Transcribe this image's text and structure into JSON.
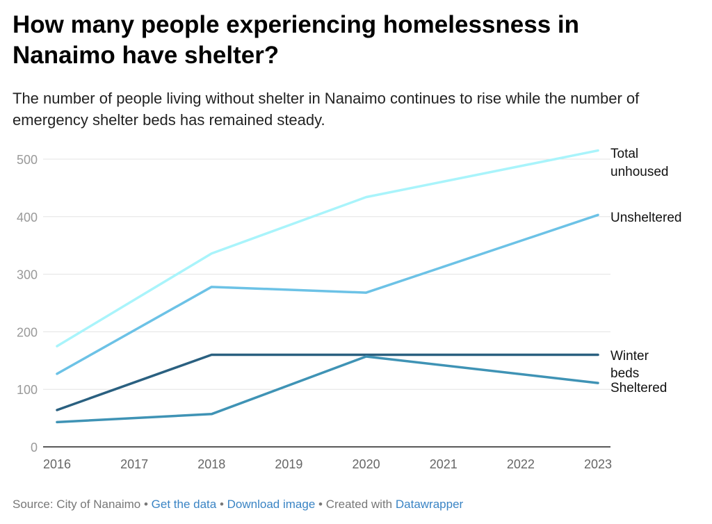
{
  "title": "How many people experiencing homelessness in Nanaimo have shelter?",
  "subtitle": "The number of people living without shelter in Nanaimo continues to rise while the number of emergency shelter beds has remained steady.",
  "footer": {
    "source": "Source: City of Nanaimo",
    "sep": " • ",
    "get_data": "Get the data",
    "download": "Download image",
    "created": "Created with ",
    "datawrapper": "Datawrapper"
  },
  "chart_data": {
    "type": "line",
    "x_ticks": [
      "2016",
      "2017",
      "2018",
      "2019",
      "2020",
      "2021",
      "2022",
      "2023"
    ],
    "xlim": [
      2016,
      2023
    ],
    "y_ticks": [
      0,
      100,
      200,
      300,
      400,
      500
    ],
    "ylim": [
      0,
      500
    ],
    "grid": true,
    "series": [
      {
        "name": "Total unhoused",
        "label_lines": [
          "Total",
          "unhoused"
        ],
        "color": "#a9f4fb",
        "x": [
          2016,
          2018,
          2020,
          2023
        ],
        "values": [
          175,
          336,
          434,
          515
        ]
      },
      {
        "name": "Unsheltered",
        "label_lines": [
          "Unsheltered"
        ],
        "color": "#6cc2e6",
        "x": [
          2016,
          2018,
          2020,
          2023
        ],
        "values": [
          127,
          278,
          268,
          403
        ]
      },
      {
        "name": "Winter beds",
        "label_lines": [
          "Winter",
          "beds"
        ],
        "color": "#2a6080",
        "x": [
          2016,
          2018,
          2020,
          2023
        ],
        "values": [
          64,
          160,
          160,
          160
        ]
      },
      {
        "name": "Sheltered",
        "label_lines": [
          "Sheltered"
        ],
        "color": "#3f93b5",
        "x": [
          2016,
          2018,
          2020,
          2023
        ],
        "values": [
          43,
          57,
          157,
          111
        ]
      }
    ]
  }
}
